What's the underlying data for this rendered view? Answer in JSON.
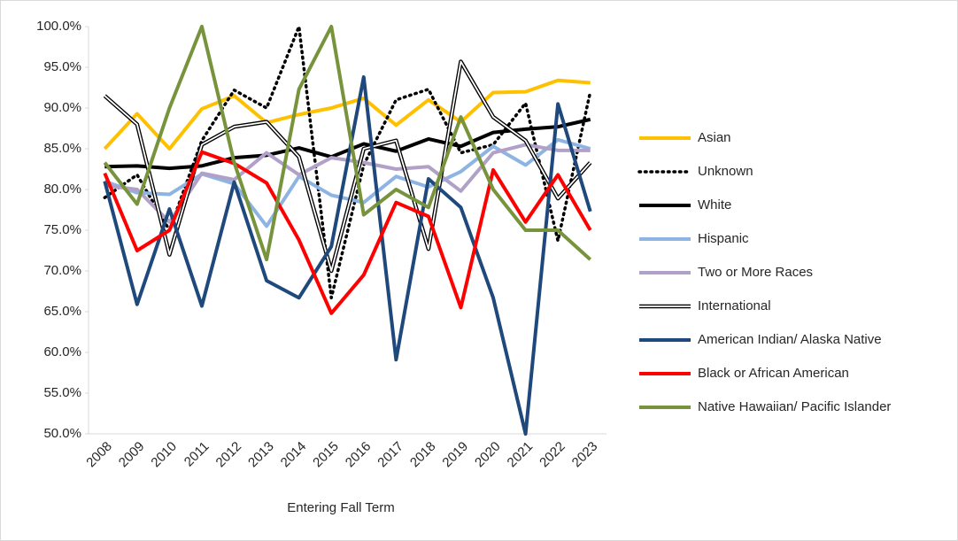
{
  "chart_data": {
    "type": "line",
    "x_label": "Entering Fall Term",
    "categories": [
      "2008",
      "2009",
      "2010",
      "2011",
      "2012",
      "2013",
      "2014",
      "2015",
      "2016",
      "2017",
      "2018",
      "2019",
      "2020",
      "2021",
      "2022",
      "2023"
    ],
    "ylim": [
      50,
      100
    ],
    "yticks": [
      {
        "value": 50,
        "label": "50.0%"
      },
      {
        "value": 55,
        "label": "55.0%"
      },
      {
        "value": 60,
        "label": "60.0%"
      },
      {
        "value": 65,
        "label": "65.0%"
      },
      {
        "value": 70,
        "label": "70.0%"
      },
      {
        "value": 75,
        "label": "75.0%"
      },
      {
        "value": 80,
        "label": "80.0%"
      },
      {
        "value": 85,
        "label": "85.0%"
      },
      {
        "value": 90,
        "label": "90.0%"
      },
      {
        "value": 95,
        "label": "95.0%"
      },
      {
        "value": 100,
        "label": "100.0%"
      }
    ],
    "grid": false,
    "legend": "right",
    "series": [
      {
        "name": "Asian",
        "color": "#ffc000",
        "values": [
          85.0,
          89.3,
          85.0,
          89.9,
          91.5,
          88.2,
          89.2,
          90.0,
          91.2,
          87.9,
          91.0,
          88.3,
          91.9,
          92.0,
          93.4,
          93.1
        ]
      },
      {
        "name": "Unknown",
        "color": "#000000",
        "dash": "dotted",
        "values": [
          79.0,
          81.8,
          75.0,
          86.0,
          92.2,
          90.0,
          100.0,
          66.7,
          83.0,
          91.0,
          92.3,
          84.5,
          85.5,
          90.6,
          73.7,
          92.0
        ]
      },
      {
        "name": "White",
        "color": "#000000",
        "values": [
          82.8,
          82.9,
          82.6,
          82.9,
          83.9,
          84.2,
          85.1,
          84.0,
          85.6,
          84.7,
          86.2,
          85.3,
          87.0,
          87.4,
          87.7,
          88.6
        ]
      },
      {
        "name": "Hispanic",
        "color": "#8db4e2",
        "values": [
          81.0,
          79.6,
          79.4,
          81.9,
          80.7,
          75.5,
          81.6,
          79.3,
          78.4,
          81.6,
          80.3,
          82.2,
          85.3,
          83.0,
          86.1,
          85.0
        ]
      },
      {
        "name": "Two or More Races",
        "color": "#b1a0c7",
        "values": [
          80.5,
          80.0,
          76.0,
          82.0,
          81.2,
          84.5,
          81.8,
          83.9,
          83.3,
          82.5,
          82.8,
          79.8,
          84.5,
          85.5,
          84.8,
          84.8
        ]
      },
      {
        "name": "International",
        "color": "#000000",
        "double": true,
        "values": [
          91.5,
          88.0,
          72.0,
          85.5,
          87.7,
          88.3,
          84.0,
          70.0,
          85.0,
          86.0,
          72.7,
          95.7,
          88.9,
          86.0,
          78.9,
          83.3
        ]
      },
      {
        "name": "American Indian/ Alaska Native",
        "color": "#1f497d",
        "values": [
          81.0,
          65.9,
          77.6,
          65.7,
          80.9,
          68.8,
          66.7,
          73.0,
          93.8,
          59.1,
          81.3,
          77.8,
          66.7,
          50.0,
          90.5,
          77.3
        ]
      },
      {
        "name": "Black or African American",
        "color": "#ff0000",
        "values": [
          82.0,
          72.5,
          75.0,
          84.6,
          83.2,
          80.8,
          73.8,
          64.8,
          69.5,
          78.4,
          76.7,
          65.5,
          82.4,
          76.0,
          81.8,
          75.0
        ]
      },
      {
        "name": "Native Hawaiian/ Pacific Islander",
        "color": "#77933c",
        "values": [
          83.3,
          78.2,
          90.0,
          100.0,
          83.3,
          71.4,
          92.3,
          100.0,
          76.9,
          80.0,
          77.8,
          88.9,
          80.0,
          75.0,
          75.0,
          71.4
        ]
      }
    ]
  }
}
